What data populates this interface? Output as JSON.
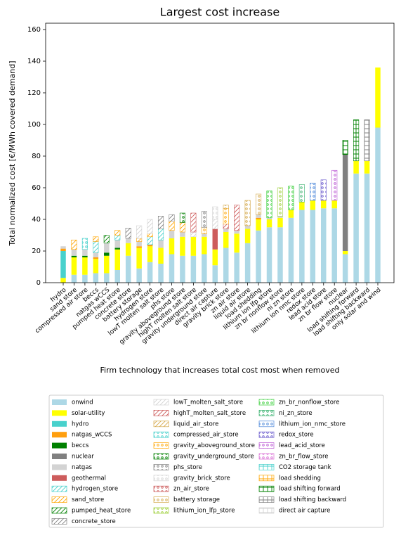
{
  "chart_data": {
    "type": "bar",
    "stacked": true,
    "title": "Largest cost increase",
    "y_label": "Total normalized cost [€/MWh covered demand]",
    "x_label": "Firm technology that increases total cost most when removed",
    "categories": [
      "hydro",
      "sand store",
      "compressed air store",
      "beccs",
      "natgas wCCS",
      "pumped heat store",
      "concrete store",
      "battery storage",
      "hydrogen store",
      "lowT molten salt store",
      "phs store",
      "gravity aboveground store",
      "highT molten salt store",
      "gravity underground store",
      "direct air capture",
      "gravity brick store",
      "zn air store",
      "liquid air store",
      "load shedding",
      "lithium ion lfp store",
      "zn br nonflow store",
      "ni zn store",
      "lithium ion nmc store",
      "redox store",
      "lead acid store",
      "zn br flow store",
      "nuclear",
      "load shifting forward",
      "load shifting backward",
      "only solar and wind"
    ],
    "ylim": [
      0,
      164
    ],
    "yticks": [
      0,
      20,
      40,
      60,
      80,
      100,
      120,
      140,
      160
    ],
    "grid": false,
    "series": [
      {
        "name": "onwind",
        "color": "#add8e6",
        "values": [
          0,
          5,
          5,
          6,
          6,
          8,
          17,
          9,
          13,
          12,
          18,
          17,
          17,
          18,
          11,
          22,
          19,
          25,
          33,
          35,
          35,
          41,
          46,
          46,
          47,
          47,
          18,
          69,
          69,
          98
        ]
      },
      {
        "name": "solar-utility",
        "color": "#ffff00",
        "values": [
          3,
          11,
          11,
          9,
          11,
          13,
          8,
          13,
          10,
          10,
          10,
          12,
          12,
          11,
          10,
          10,
          12,
          9,
          7,
          5,
          6,
          5,
          5,
          6,
          5,
          5,
          2,
          8,
          8,
          38
        ]
      },
      {
        "name": "hydro",
        "color": "#48d1cc",
        "values": [
          17,
          0,
          0,
          0,
          0,
          0,
          0,
          0,
          0,
          0,
          0,
          0,
          0,
          0,
          0,
          0,
          0,
          0,
          0,
          0,
          0,
          0,
          0,
          0,
          0,
          0,
          0,
          0,
          0,
          0
        ]
      },
      {
        "name": "natgas_wCCS",
        "color": "#ff9f0f",
        "values": [
          1.5,
          0,
          0,
          1,
          0,
          0,
          0,
          1,
          1,
          0,
          0,
          0,
          0,
          0,
          0,
          0,
          0,
          0,
          1,
          0,
          0,
          0,
          0,
          0,
          0,
          0,
          0,
          0,
          0,
          0
        ]
      },
      {
        "name": "beccs",
        "color": "#008000",
        "values": [
          0,
          1,
          1,
          0,
          2,
          1,
          0,
          0,
          0,
          0,
          0,
          0,
          0,
          0,
          0,
          0,
          0,
          0,
          0,
          0,
          0,
          0,
          0,
          0,
          0,
          0,
          0,
          0,
          0,
          0
        ]
      },
      {
        "name": "nuclear",
        "color": "#808080",
        "values": [
          0,
          0,
          0,
          0,
          0,
          0,
          0,
          0,
          0,
          0,
          0,
          0,
          0,
          0,
          0,
          0,
          0,
          0,
          0,
          0,
          0,
          0,
          0,
          0,
          0,
          0,
          61,
          0,
          0,
          0
        ]
      },
      {
        "name": "natgas",
        "color": "#d3d3d3",
        "values": [
          1.5,
          4,
          4,
          3,
          6,
          5,
          3,
          3,
          0,
          5,
          5,
          3,
          0,
          2,
          0,
          2,
          2,
          2,
          2,
          1,
          1,
          0,
          0,
          0,
          0,
          0,
          0,
          0,
          0,
          0
        ]
      },
      {
        "name": "geothermal",
        "color": "#cd5c5c",
        "values": [
          0,
          0,
          0,
          0,
          0,
          0,
          0,
          0,
          0,
          0,
          0,
          0,
          0,
          0,
          13,
          0,
          0,
          0,
          0,
          0,
          0,
          0,
          0,
          0,
          0,
          0,
          0,
          0,
          0,
          0
        ]
      },
      {
        "name": "hydrogen_store",
        "color": "#48d1cc",
        "hatch": "/",
        "values": [
          0,
          0,
          0,
          7,
          0,
          3,
          0,
          0,
          5,
          7,
          0,
          0,
          0,
          0,
          0,
          0,
          0,
          0,
          0,
          0,
          0,
          0,
          0,
          0,
          0,
          0,
          0,
          0,
          0,
          0
        ]
      },
      {
        "name": "sand_store",
        "color": "#ffa500",
        "hatch": "/",
        "values": [
          0,
          6,
          0,
          3,
          0,
          3,
          0,
          2,
          2,
          0,
          6,
          6,
          0,
          0,
          0,
          0,
          0,
          0,
          0,
          0,
          0,
          0,
          0,
          0,
          0,
          0,
          0,
          0,
          0,
          0
        ]
      },
      {
        "name": "pumped_heat_store",
        "color": "#008000",
        "hatch": "/",
        "values": [
          0,
          0,
          0,
          0,
          5,
          0,
          0,
          0,
          0,
          0,
          0,
          0,
          0,
          0,
          0,
          0,
          0,
          0,
          0,
          0,
          0,
          0,
          0,
          0,
          0,
          0,
          0,
          0,
          0,
          0
        ]
      },
      {
        "name": "concrete_store",
        "color": "#808080",
        "hatch": "/",
        "values": [
          0,
          0,
          0,
          0,
          0,
          0,
          6.5,
          0,
          0,
          8,
          4,
          0,
          0,
          0,
          0,
          0,
          0,
          0,
          0,
          0,
          0,
          0,
          0,
          0,
          0,
          0,
          0,
          0,
          0,
          0
        ]
      },
      {
        "name": "lowT_molten_salt_store",
        "color": "#d3d3d3",
        "hatch": "/",
        "values": [
          0,
          0,
          0,
          0,
          0,
          0,
          0,
          8,
          9,
          0,
          0,
          0,
          3,
          0,
          6,
          0,
          0,
          0,
          0,
          0,
          0,
          0,
          0,
          0,
          0,
          0,
          0,
          0,
          0,
          0
        ]
      },
      {
        "name": "highT_molten_salt_store",
        "color": "#cd5c5c",
        "hatch": "/",
        "values": [
          0,
          0,
          0,
          0,
          0,
          0,
          0,
          0,
          0,
          0,
          0,
          0,
          12,
          0,
          0,
          3,
          16,
          0,
          0,
          0,
          0,
          0,
          0,
          0,
          0,
          0,
          0,
          0,
          0,
          0
        ]
      },
      {
        "name": "liquid_air_store",
        "color": "#d4a84a",
        "hatch": "/",
        "values": [
          0,
          0,
          0,
          0,
          0,
          0,
          0,
          0,
          0,
          0,
          0,
          0,
          0,
          0,
          0,
          0,
          0,
          0,
          0,
          0,
          0,
          0,
          0,
          0,
          0,
          0,
          0,
          0,
          0,
          0
        ]
      },
      {
        "name": "compressed_air_store",
        "color": "#48d1cc",
        "hatch": "o",
        "values": [
          0,
          0,
          7,
          0,
          0,
          0,
          0,
          0,
          0,
          0,
          0,
          0,
          0,
          0,
          0,
          0,
          0,
          0,
          0,
          0,
          0,
          0,
          0,
          0,
          0,
          0,
          0,
          0,
          0,
          0
        ]
      },
      {
        "name": "gravity_aboveground_store",
        "color": "#ffa500",
        "hatch": "o",
        "values": [
          0,
          0,
          0,
          0,
          0,
          0,
          0,
          0,
          0,
          0,
          0,
          0,
          0,
          4,
          0,
          10,
          0,
          0,
          0,
          0,
          0,
          0,
          0,
          0,
          0,
          0,
          0,
          0,
          0,
          0
        ]
      },
      {
        "name": "gravity_underground_store",
        "color": "#008000",
        "hatch": "o",
        "values": [
          0,
          0,
          0,
          0,
          0,
          0,
          0,
          0,
          0,
          0,
          0,
          6,
          0,
          0,
          0,
          0,
          0,
          0,
          0,
          0,
          0,
          0,
          0,
          0,
          0,
          0,
          0,
          0,
          0,
          0
        ]
      },
      {
        "name": "phs_store",
        "color": "#808080",
        "hatch": "o",
        "values": [
          0,
          0,
          0,
          0,
          0,
          0,
          0,
          0,
          0,
          0,
          0,
          0,
          0,
          10,
          0,
          0,
          0,
          0,
          0,
          0,
          0,
          0,
          0,
          0,
          0,
          0,
          0,
          0,
          0,
          0
        ]
      },
      {
        "name": "gravity_brick_store",
        "color": "#d3d3d3",
        "hatch": "o",
        "values": [
          0,
          0,
          0,
          0,
          0,
          0,
          0,
          0,
          0,
          0,
          0,
          0,
          0,
          0,
          8,
          0,
          0,
          0,
          0,
          0,
          0,
          0,
          0,
          0,
          0,
          0,
          0,
          0,
          0,
          0
        ]
      },
      {
        "name": "zn_air_store",
        "color": "#cd5c5c",
        "hatch": "o",
        "values": [
          0,
          0,
          0,
          0,
          0,
          0,
          0,
          0,
          0,
          0,
          0,
          0,
          0,
          0,
          0,
          0,
          0,
          0,
          0,
          0,
          0,
          0,
          0,
          0,
          0,
          0,
          0,
          0,
          0,
          0
        ]
      },
      {
        "name": "battery storage",
        "color": "#d4a84a",
        "hatch": "o",
        "values": [
          0,
          0,
          0,
          0,
          0,
          0,
          0,
          0,
          0,
          0,
          0,
          0,
          0,
          0,
          0,
          2,
          0,
          16,
          13,
          0,
          0,
          0,
          0,
          0,
          0,
          0,
          0,
          0,
          0,
          0
        ]
      },
      {
        "name": "lithium_ion_lfp_store",
        "color": "#9acd32",
        "hatch": "o",
        "values": [
          0,
          0,
          0,
          0,
          0,
          0,
          0,
          0,
          0,
          0,
          0,
          0,
          0,
          0,
          0,
          0,
          0,
          0,
          0,
          0,
          18,
          0,
          0,
          0,
          0,
          0,
          0,
          0,
          0,
          0
        ]
      },
      {
        "name": "zn_br_nonflow_store",
        "color": "#32cd32",
        "hatch": "o",
        "values": [
          0,
          0,
          0,
          0,
          0,
          0,
          0,
          0,
          0,
          0,
          0,
          0,
          0,
          0,
          0,
          0,
          0,
          0,
          0,
          17,
          0,
          15,
          0,
          0,
          0,
          0,
          0,
          0,
          0,
          0
        ]
      },
      {
        "name": "ni_zn_store",
        "color": "#3cb371",
        "hatch": "o",
        "values": [
          0,
          0,
          0,
          0,
          0,
          0,
          0,
          0,
          0,
          0,
          0,
          0,
          0,
          0,
          0,
          0,
          0,
          0,
          0,
          0,
          0,
          0,
          11,
          0,
          0,
          0,
          0,
          0,
          0,
          0
        ]
      },
      {
        "name": "lithium_ion_nmc_store",
        "color": "#4a86d9",
        "hatch": "o",
        "values": [
          0,
          0,
          0,
          0,
          0,
          0,
          0,
          0,
          0,
          0,
          0,
          0,
          0,
          0,
          0,
          0,
          0,
          0,
          0,
          0,
          0,
          0,
          0,
          11,
          0,
          0,
          0,
          0,
          0,
          0
        ]
      },
      {
        "name": "redox_store",
        "color": "#6a5acd",
        "hatch": "o",
        "values": [
          0,
          0,
          0,
          0,
          0,
          0,
          0,
          0,
          0,
          0,
          0,
          0,
          0,
          0,
          0,
          0,
          0,
          0,
          0,
          0,
          0,
          0,
          0,
          0,
          13,
          0,
          0,
          0,
          0,
          0
        ]
      },
      {
        "name": "lead_acid_store",
        "color": "#ba55d3",
        "hatch": "o",
        "values": [
          0,
          0,
          0,
          0,
          0,
          0,
          0,
          0,
          0,
          0,
          0,
          0,
          0,
          0,
          0,
          0,
          0,
          0,
          0,
          0,
          0,
          0,
          0,
          0,
          0,
          19,
          0,
          0,
          0,
          0
        ]
      },
      {
        "name": "zn_br_flow_store",
        "color": "#da70d6",
        "hatch": "o",
        "values": [
          0,
          0,
          0,
          0,
          0,
          0,
          0,
          0,
          0,
          0,
          0,
          0,
          0,
          0,
          0,
          0,
          0,
          0,
          0,
          0,
          0,
          0,
          0,
          0,
          0,
          0,
          0,
          0,
          0,
          0
        ]
      },
      {
        "name": "CO2 storage tank",
        "color": "#48d1cc",
        "hatch": "+",
        "values": [
          0,
          0,
          0,
          0,
          0,
          0,
          0,
          0,
          0,
          0,
          0,
          0,
          0,
          0,
          0,
          0,
          0,
          0,
          0,
          0,
          0,
          0,
          0,
          0,
          0,
          0,
          0,
          0,
          0,
          0
        ]
      },
      {
        "name": "load shedding",
        "color": "#ffa500",
        "hatch": "+",
        "values": [
          0,
          0,
          0,
          0,
          0,
          0,
          0,
          0,
          0,
          0,
          0,
          0,
          0,
          0,
          0,
          0,
          0,
          0,
          0,
          0,
          0,
          0,
          0,
          0,
          0,
          0,
          0,
          0,
          0,
          0
        ]
      },
      {
        "name": "load shifting forward",
        "color": "#008000",
        "hatch": "+",
        "values": [
          0,
          0,
          0,
          0,
          0,
          0,
          0,
          0,
          0,
          0,
          0,
          0,
          0,
          0,
          0,
          0,
          0,
          0,
          0,
          0,
          0,
          0,
          0,
          0,
          0,
          0,
          9,
          26,
          0,
          0
        ]
      },
      {
        "name": "load shifting backward",
        "color": "#808080",
        "hatch": "+",
        "values": [
          0,
          0,
          0,
          0,
          0,
          0,
          0,
          0,
          0,
          0,
          0,
          0,
          0,
          0,
          0,
          0,
          0,
          0,
          0,
          0,
          0,
          0,
          0,
          0,
          0,
          0,
          0,
          0,
          26,
          0
        ]
      },
      {
        "name": "direct air capture",
        "color": "#d3d3d3",
        "hatch": "+",
        "values": [
          0,
          0,
          0,
          0,
          0,
          0,
          0,
          0,
          0,
          0,
          0,
          0,
          0,
          0,
          0,
          0,
          0,
          0,
          0,
          0,
          0,
          0,
          0,
          0,
          0,
          0,
          0,
          0,
          0,
          0
        ]
      }
    ]
  }
}
